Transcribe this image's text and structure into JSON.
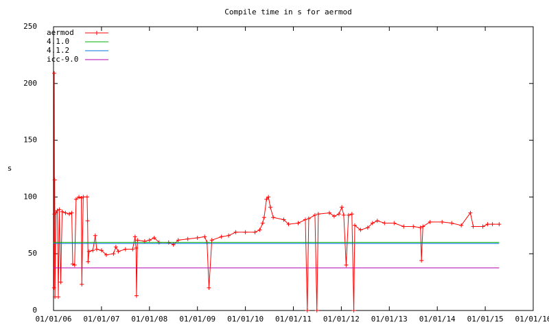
{
  "chart_data": {
    "type": "line",
    "title": "Compile time in s for aermod",
    "ylabel": "s",
    "xlim": [
      2006,
      2016
    ],
    "xticks": [
      {
        "value": 2006,
        "label": "01/01/06"
      },
      {
        "value": 2007,
        "label": "01/01/07"
      },
      {
        "value": 2008,
        "label": "01/01/08"
      },
      {
        "value": 2009,
        "label": "01/01/09"
      },
      {
        "value": 2010,
        "label": "01/01/10"
      },
      {
        "value": 2011,
        "label": "01/01/11"
      },
      {
        "value": 2012,
        "label": "01/01/12"
      },
      {
        "value": 2013,
        "label": "01/01/13"
      },
      {
        "value": 2014,
        "label": "01/01/14"
      },
      {
        "value": 2015,
        "label": "01/01/15"
      },
      {
        "value": 2016,
        "label": "01/01/16"
      }
    ],
    "ylim": [
      0,
      250
    ],
    "yticks": [
      0,
      50,
      100,
      150,
      200,
      250
    ],
    "grid": false,
    "legend": "top-left",
    "series": [
      {
        "name": "aermod",
        "color": "#ff0000",
        "marker": "+",
        "x": [
          2006.01,
          2006.015,
          2006.02,
          2006.025,
          2006.03,
          2006.05,
          2006.08,
          2006.1,
          2006.12,
          2006.15,
          2006.18,
          2006.25,
          2006.33,
          2006.38,
          2006.4,
          2006.44,
          2006.47,
          2006.53,
          2006.58,
          2006.59,
          2006.62,
          2006.7,
          2006.71,
          2006.72,
          2006.74,
          2006.82,
          2006.87,
          2006.9,
          2007.0,
          2007.1,
          2007.25,
          2007.3,
          2007.35,
          2007.5,
          2007.65,
          2007.7,
          2007.72,
          2007.73,
          2007.75,
          2007.9,
          2008.0,
          2008.1,
          2008.2,
          2008.4,
          2008.5,
          2008.6,
          2008.8,
          2009.0,
          2009.15,
          2009.2,
          2009.24,
          2009.3,
          2009.5,
          2009.65,
          2009.8,
          2010.0,
          2010.2,
          2010.3,
          2010.36,
          2010.39,
          2010.44,
          2010.48,
          2010.52,
          2010.58,
          2010.8,
          2010.9,
          2011.1,
          2011.25,
          2011.29,
          2011.32,
          2011.45,
          2011.49,
          2011.52,
          2011.75,
          2011.85,
          2011.95,
          2012.01,
          2012.05,
          2012.1,
          2012.15,
          2012.22,
          2012.26,
          2012.28,
          2012.4,
          2012.55,
          2012.65,
          2012.75,
          2012.9,
          2013.1,
          2013.3,
          2013.5,
          2013.65,
          2013.67,
          2013.7,
          2013.85,
          2014.1,
          2014.3,
          2014.5,
          2014.69,
          2014.75,
          2014.95,
          2015.05,
          2015.15,
          2015.29
        ],
        "values": [
          20,
          209,
          85,
          115,
          12,
          86,
          88,
          12,
          89,
          25,
          87,
          86,
          85,
          86,
          41,
          40,
          98,
          100,
          99,
          23,
          100,
          100,
          79,
          43,
          52,
          53,
          66,
          54,
          53,
          49,
          50,
          56,
          52,
          54,
          54,
          65,
          55,
          13,
          62,
          61,
          62,
          64,
          60,
          60,
          58,
          62,
          63,
          64,
          65,
          60,
          20,
          62,
          65,
          66,
          69,
          69,
          69,
          71,
          77,
          82,
          98,
          100,
          91,
          82,
          80,
          76,
          77,
          80,
          0,
          81,
          84,
          0,
          85,
          86,
          83,
          85,
          91,
          84,
          40,
          84,
          85,
          0,
          75,
          71,
          73,
          77,
          79,
          77,
          77,
          74,
          74,
          73,
          44,
          74,
          78,
          78,
          77,
          75,
          86,
          74,
          74,
          76,
          76,
          76
        ]
      },
      {
        "name": "4.1.0",
        "color": "#00b000",
        "x": [
          2006,
          2015.29
        ],
        "values": [
          60,
          60
        ]
      },
      {
        "name": "4.1.2",
        "color": "#0070e0",
        "x": [
          2006,
          2015.29
        ],
        "values": [
          59,
          59
        ]
      },
      {
        "name": "icc-9.0",
        "color": "#b000b0",
        "x": [
          2006,
          2015.29
        ],
        "values": [
          37.5,
          37.5
        ]
      }
    ]
  }
}
